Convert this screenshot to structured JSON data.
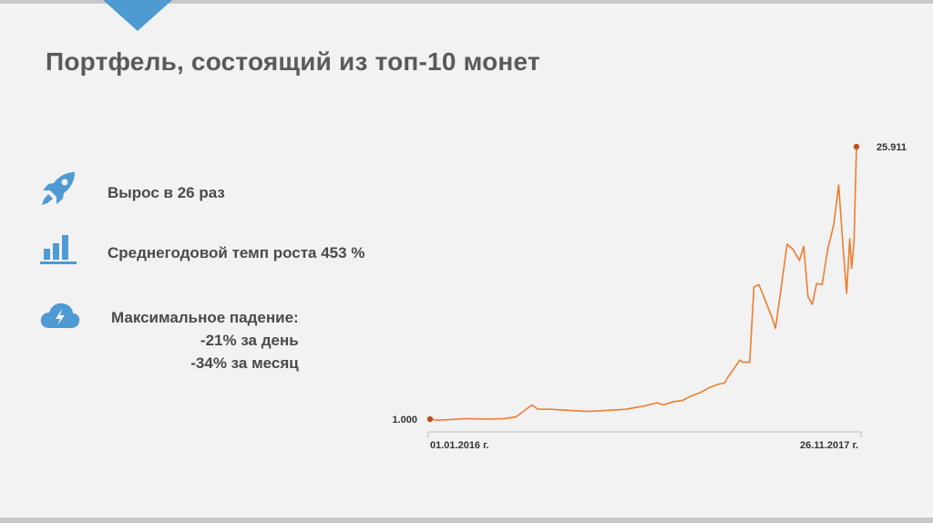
{
  "slide": {
    "title": "Портфель, состоящий из топ-10 монет",
    "accent_color": "#4e9ad3",
    "stats": [
      {
        "icon": "rocket-icon",
        "text": "Вырос в 26 раз"
      },
      {
        "icon": "bar-chart-icon",
        "text": "Среднегодовой темп роста 453 %"
      }
    ],
    "drawdown": {
      "icon": "lightning-cloud-icon",
      "label": "Максимальное падение:",
      "day": "-21% за день",
      "month": "-34% за месяц"
    }
  },
  "chart_data": {
    "type": "line",
    "line_color": "#ed7d31",
    "marker_color": "#c0501e",
    "x_start_label": "01.01.2016 г.",
    "x_end_label": "26.11.2017 г.",
    "start_value_label": "1.000",
    "end_value_label": "25.911",
    "ylim": [
      1,
      25.911
    ],
    "series": [
      {
        "x": [
          "2016-01-01",
          "2016-01-15",
          "2016-02-01",
          "2016-03-01",
          "2016-04-01",
          "2016-05-01",
          "2016-05-20",
          "2016-06-15",
          "2016-06-25",
          "2016-07-15",
          "2016-08-15",
          "2016-09-15",
          "2016-10-15",
          "2016-11-15",
          "2016-12-15",
          "2017-01-05",
          "2017-01-15",
          "2017-02-01",
          "2017-02-15",
          "2017-03-01",
          "2017-03-15",
          "2017-04-01",
          "2017-04-15",
          "2017-04-25",
          "2017-05-01",
          "2017-05-10",
          "2017-05-20",
          "2017-05-25",
          "2017-06-05",
          "2017-06-12",
          "2017-06-20",
          "2017-06-28",
          "2017-07-05",
          "2017-07-12",
          "2017-07-17",
          "2017-07-25",
          "2017-08-05",
          "2017-08-15",
          "2017-08-25",
          "2017-09-01",
          "2017-09-08",
          "2017-09-15",
          "2017-09-22",
          "2017-10-01",
          "2017-10-10",
          "2017-10-20",
          "2017-10-28",
          "2017-11-05",
          "2017-11-10",
          "2017-11-15",
          "2017-11-18",
          "2017-11-22",
          "2017-11-26"
        ],
        "y": [
          1.0,
          0.9,
          0.95,
          1.05,
          1.0,
          1.05,
          1.2,
          2.3,
          1.9,
          1.9,
          1.8,
          1.7,
          1.8,
          1.9,
          2.2,
          2.5,
          2.3,
          2.6,
          2.7,
          3.1,
          3.4,
          3.9,
          4.2,
          4.3,
          4.9,
          5.6,
          6.4,
          6.2,
          6.2,
          13.1,
          13.3,
          12.2,
          11.2,
          10.2,
          9.3,
          12.5,
          17.0,
          16.5,
          15.5,
          16.8,
          12.2,
          11.5,
          13.4,
          13.3,
          16.5,
          18.8,
          22.4,
          16.0,
          12.5,
          17.5,
          14.8,
          17.2,
          25.911
        ]
      }
    ]
  }
}
